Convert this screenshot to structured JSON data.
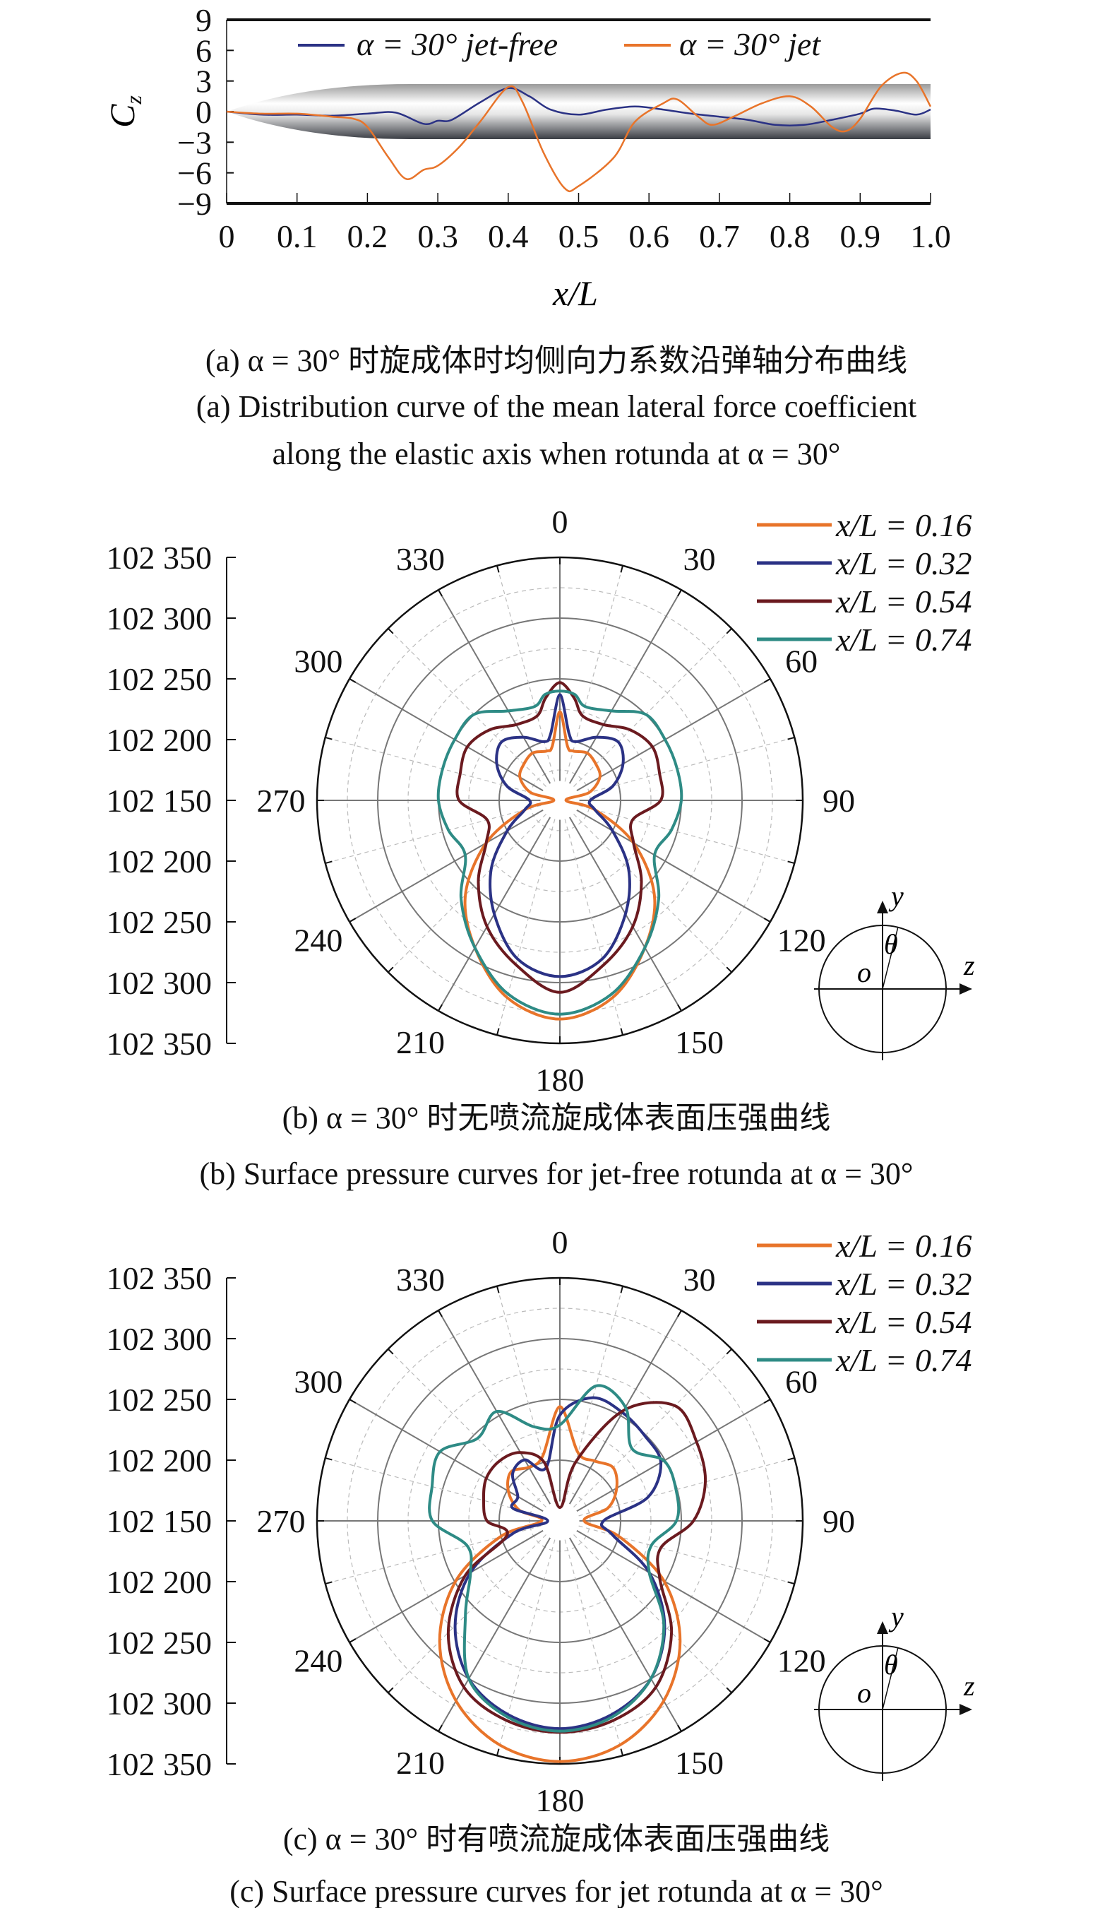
{
  "captions": {
    "a_cn": "(a) α = 30° 时旋成体时均侧向力系数沿弹轴分布曲线",
    "a_en1": "(a) Distribution curve of the mean lateral force coefficient",
    "a_en2": "along the elastic axis when rotunda at α = 30°",
    "b_cn": "(b) α = 30° 时无喷流旋成体表面压强曲线",
    "b_en": "(b) Surface pressure curves for jet-free rotunda at α = 30°",
    "c_cn": "(c) α = 30° 时有喷流旋成体表面压强曲线",
    "c_en": "(c) Surface pressure curves for jet rotunda at α = 30°"
  },
  "chart_data": [
    {
      "type": "line",
      "xlabel": "x/L",
      "ylabel": "C_z",
      "ylabel_main": "C",
      "ylabel_sub": "z",
      "xlim": [
        0,
        1.0
      ],
      "ylim": [
        -9,
        9
      ],
      "xticks": [
        "0",
        "0.1",
        "0.2",
        "0.3",
        "0.4",
        "0.5",
        "0.6",
        "0.7",
        "0.8",
        "0.9",
        "1.0"
      ],
      "yticks": [
        "9",
        "6",
        "3",
        "0",
        "−3",
        "−6",
        "−9"
      ],
      "legend_placement": "top",
      "series": [
        {
          "name": "α = 30° jet-free",
          "color": "#2b3285",
          "x": [
            0,
            0.05,
            0.1,
            0.15,
            0.2,
            0.24,
            0.28,
            0.3,
            0.32,
            0.36,
            0.4,
            0.43,
            0.46,
            0.5,
            0.54,
            0.58,
            0.62,
            0.66,
            0.7,
            0.74,
            0.78,
            0.82,
            0.86,
            0.9,
            0.92,
            0.95,
            0.98,
            1.0
          ],
          "y": [
            0,
            -0.3,
            -0.3,
            -0.4,
            -0.2,
            -0.1,
            -1.2,
            -0.9,
            -0.8,
            0.9,
            2.3,
            1.5,
            0.2,
            -0.3,
            0.2,
            0.5,
            0.2,
            -0.2,
            -0.5,
            -0.8,
            -1.3,
            -1.3,
            -0.8,
            -0.2,
            0.3,
            0.1,
            -0.3,
            0.2
          ]
        },
        {
          "name": "α = 30° jet",
          "color": "#e8742a",
          "x": [
            0,
            0.05,
            0.1,
            0.15,
            0.18,
            0.2,
            0.23,
            0.255,
            0.28,
            0.3,
            0.33,
            0.36,
            0.4,
            0.42,
            0.45,
            0.48,
            0.5,
            0.55,
            0.58,
            0.62,
            0.64,
            0.67,
            0.69,
            0.72,
            0.76,
            0.8,
            0.83,
            0.86,
            0.88,
            0.9,
            0.93,
            0.96,
            0.98,
            1.0
          ],
          "y": [
            0,
            -0.2,
            -0.2,
            -0.5,
            -0.7,
            -1.5,
            -4.5,
            -6.6,
            -5.7,
            -5.3,
            -3.5,
            -1,
            2.4,
            1,
            -4,
            -7.5,
            -7.3,
            -4.5,
            -1,
            0.8,
            1.2,
            -0.5,
            -1.3,
            -0.5,
            0.8,
            1.5,
            0.5,
            -1.5,
            -1.9,
            -0.7,
            2.5,
            3.8,
            3,
            0.5
          ]
        }
      ]
    },
    {
      "type": "polar",
      "angle_ticks": [
        "0",
        "30",
        "60",
        "90",
        "120",
        "150",
        "180",
        "210",
        "240",
        "270",
        "300",
        "330"
      ],
      "radial_axis_ticks": [
        "102 350",
        "102 300",
        "102 250",
        "102 200",
        "102 150",
        "102 200",
        "102 250",
        "102 300",
        "102 350"
      ],
      "rlim": [
        102150,
        102350
      ],
      "legend_placement": "top-right",
      "series": [
        {
          "name": "x/L = 0.16",
          "color": "#e8742a",
          "theta": [
            0,
            8,
            15,
            30,
            45,
            60,
            75,
            90,
            105,
            120,
            135,
            150,
            165,
            180,
            195,
            210,
            225,
            240,
            255,
            270,
            285,
            300,
            315,
            330,
            345,
            352
          ],
          "p": [
            102223,
            102195,
            102192,
            102195,
            102192,
            102188,
            102175,
            102155,
            102180,
            102220,
            102260,
            102290,
            102318,
            102330,
            102318,
            102290,
            102260,
            102220,
            102180,
            102155,
            102175,
            102188,
            102192,
            102195,
            102192,
            102195
          ]
        },
        {
          "name": "x/L = 0.32",
          "color": "#2b3285",
          "theta": [
            0,
            8,
            15,
            30,
            45,
            60,
            75,
            90,
            105,
            120,
            135,
            150,
            165,
            180,
            195,
            210,
            225,
            240,
            255,
            270,
            285,
            300,
            315,
            330,
            345,
            352
          ],
          "p": [
            102237,
            102205,
            102200,
            102210,
            102218,
            102210,
            102195,
            102175,
            102180,
            102200,
            102230,
            102258,
            102285,
            102295,
            102285,
            102258,
            102230,
            102200,
            102180,
            102175,
            102195,
            102210,
            102218,
            102210,
            102200,
            102205
          ]
        },
        {
          "name": "x/L = 0.54",
          "color": "#6b1a1f",
          "theta": [
            0,
            8,
            15,
            30,
            45,
            60,
            75,
            90,
            105,
            120,
            135,
            150,
            165,
            180,
            195,
            210,
            225,
            240,
            255,
            270,
            285,
            300,
            315,
            330,
            345,
            352
          ],
          "p": [
            102247,
            102235,
            102222,
            102222,
            102232,
            102238,
            102235,
            102233,
            102212,
            102220,
            102245,
            102270,
            102290,
            102308,
            102290,
            102270,
            102245,
            102220,
            102212,
            102233,
            102235,
            102238,
            102232,
            102222,
            102222,
            102235
          ]
        },
        {
          "name": "x/L = 0.74",
          "color": "#2e8b85",
          "theta": [
            0,
            8,
            15,
            30,
            45,
            60,
            75,
            90,
            105,
            120,
            135,
            150,
            165,
            180,
            195,
            210,
            225,
            240,
            255,
            270,
            285,
            300,
            315,
            330,
            345,
            352
          ],
          "p": [
            102240,
            102238,
            102230,
            102235,
            102250,
            102250,
            102250,
            102250,
            102245,
            102240,
            102265,
            102290,
            102315,
            102326,
            102315,
            102290,
            102265,
            102240,
            102245,
            102250,
            102250,
            102250,
            102250,
            102235,
            102230,
            102238
          ]
        }
      ]
    },
    {
      "type": "polar",
      "angle_ticks": [
        "0",
        "30",
        "60",
        "90",
        "120",
        "150",
        "180",
        "210",
        "240",
        "270",
        "300",
        "330"
      ],
      "radial_axis_ticks": [
        "102 350",
        "102 300",
        "102 250",
        "102 200",
        "102 150",
        "102 200",
        "102 250",
        "102 300",
        "102 350"
      ],
      "rlim": [
        102150,
        102350
      ],
      "legend_placement": "top-right",
      "series": [
        {
          "name": "x/L = 0.16",
          "color": "#e8742a",
          "theta": [
            0,
            15,
            30,
            45,
            60,
            75,
            90,
            105,
            120,
            135,
            150,
            165,
            180,
            195,
            210,
            225,
            240,
            255,
            270,
            285,
            300,
            315,
            330,
            345
          ],
          "p": [
            102244,
            102208,
            102207,
            102212,
            102204,
            102191,
            102170,
            102201,
            102249,
            102290,
            102321,
            102341,
            102348,
            102341,
            102321,
            102290,
            102249,
            102201,
            102165,
            102185,
            102199,
            102207,
            102201,
            102205
          ]
        },
        {
          "name": "x/L = 0.32",
          "color": "#2b3285",
          "theta": [
            0,
            15,
            30,
            45,
            60,
            75,
            90,
            105,
            120,
            135,
            150,
            165,
            180,
            195,
            210,
            225,
            240,
            255,
            270,
            285,
            300,
            315,
            330,
            345
          ],
          "p": [
            102237,
            102255,
            102253,
            102249,
            102246,
            102225,
            102186,
            102195,
            102235,
            102272,
            102300,
            102315,
            102321,
            102315,
            102300,
            102272,
            102235,
            102190,
            102160,
            102190,
            102190,
            102205,
            102208,
            102195
          ]
        },
        {
          "name": "x/L = 0.54",
          "color": "#6b1a1f",
          "theta": [
            0,
            15,
            30,
            45,
            60,
            75,
            90,
            105,
            120,
            135,
            150,
            165,
            180,
            195,
            210,
            225,
            240,
            255,
            270,
            285,
            300,
            315,
            330,
            345
          ],
          "p": [
            102161,
            102200,
            102255,
            102284,
            102280,
            102274,
            102260,
            102236,
            102245,
            102280,
            102308,
            102320,
            102324,
            102320,
            102308,
            102280,
            102240,
            102195,
            102210,
            102215,
            102220,
            102220,
            102215,
            102200
          ]
        },
        {
          "name": "x/L = 0.74",
          "color": "#2e8b85",
          "theta": [
            0,
            15,
            30,
            45,
            60,
            75,
            90,
            105,
            120,
            135,
            150,
            165,
            180,
            195,
            210,
            225,
            240,
            255,
            270,
            285,
            300,
            315,
            330,
            345
          ],
          "p": [
            102229,
            102265,
            102258,
            102234,
            102249,
            102249,
            102246,
            102228,
            102235,
            102271,
            102300,
            102317,
            102323,
            102317,
            102300,
            102260,
            102235,
            102229,
            102255,
            102259,
            102264,
            102246,
            102254,
            102230
          ]
        }
      ]
    }
  ],
  "inset": {
    "y": "y",
    "z": "z",
    "o": "o",
    "theta": "θ"
  }
}
